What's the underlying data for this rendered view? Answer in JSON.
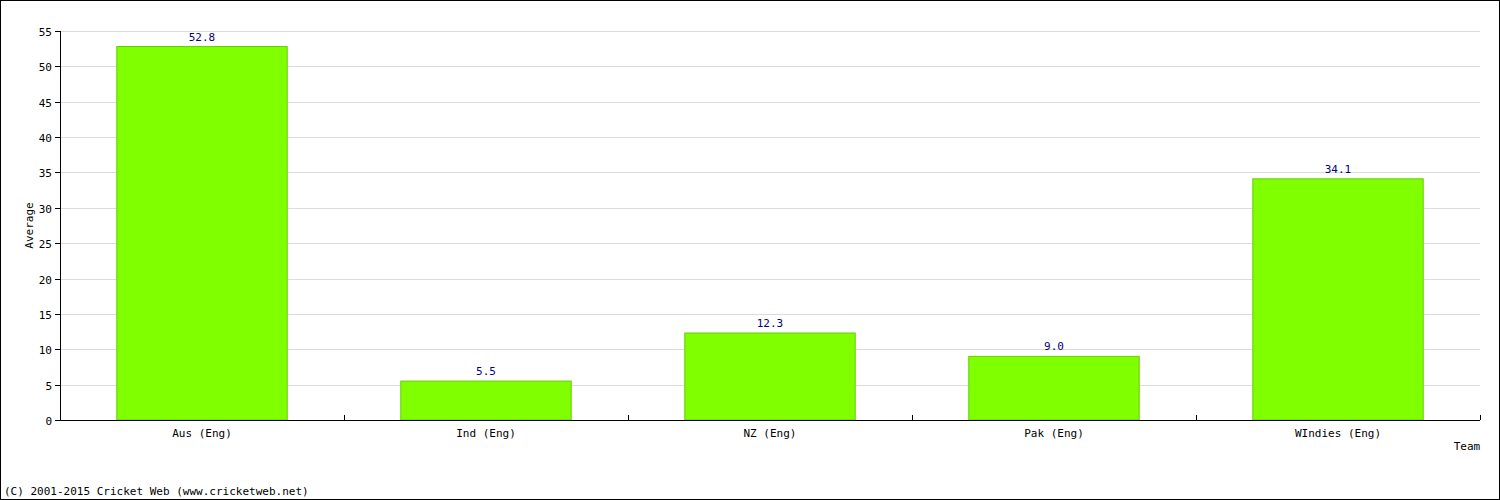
{
  "chart_data": {
    "type": "bar",
    "x_label": "Team",
    "y_label": "Average",
    "categories": [
      "Aus (Eng)",
      "Ind (Eng)",
      "NZ (Eng)",
      "Pak (Eng)",
      "WIndies (Eng)"
    ],
    "values": [
      52.8,
      5.5,
      12.3,
      9,
      34.1
    ],
    "value_labels": [
      "52.8",
      "5.5",
      "12.3",
      "9.0",
      "34.1"
    ],
    "data_labels": true,
    "color": "#80ff00",
    "ylim": [
      0,
      55
    ],
    "yticks": [
      0,
      5,
      10,
      15,
      20,
      25,
      30,
      35,
      40,
      45,
      50,
      55
    ],
    "grid": true,
    "annotations": [
      "(C) 2001-2015 Cricket Web (www.cricketweb.net)"
    ]
  }
}
